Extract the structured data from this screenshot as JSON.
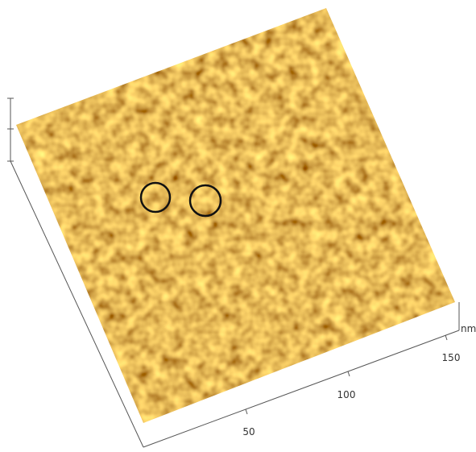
{
  "axis": {
    "ticks": [
      50,
      100,
      150
    ],
    "unit": "nm"
  }
}
